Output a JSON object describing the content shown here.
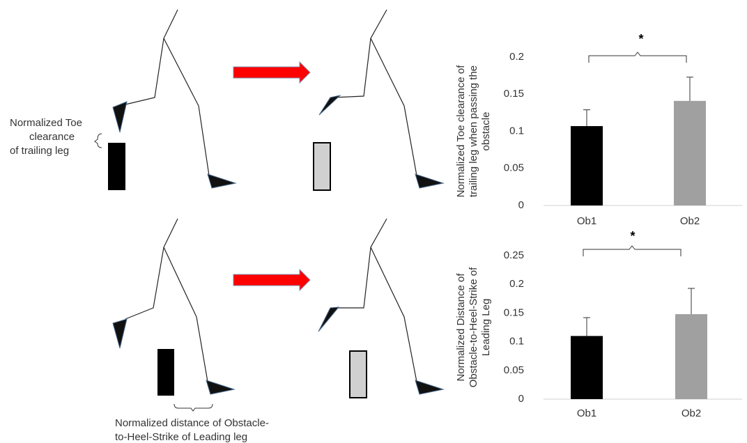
{
  "annotations": {
    "toe_clearance_label": [
      "Normalized Toe",
      "clearance",
      "of trailing leg"
    ],
    "heel_strike_label": [
      "Normalized distance of Obstacle-",
      "to-Heel-Strike of Leading leg"
    ]
  },
  "chart_data": [
    {
      "type": "bar",
      "ylabel": [
        "Normalized Toe clearance of",
        "trailing leg when passing the",
        "obstacle"
      ],
      "categories": [
        "Ob1",
        "Ob2"
      ],
      "values": [
        0.107,
        0.141
      ],
      "errors": [
        0.022,
        0.032
      ],
      "colors": [
        "#000000",
        "#a0a0a0"
      ],
      "significance": "*",
      "ylim": [
        0,
        0.2
      ],
      "yticks": [
        0,
        0.05,
        0.1,
        0.15,
        0.2
      ],
      "grid": false
    },
    {
      "type": "bar",
      "ylabel": [
        "Normalized Distance of",
        "Obstacle-to-Heel-Strike of",
        "Leading Leg"
      ],
      "categories": [
        "Ob1",
        "Ob2"
      ],
      "values": [
        0.11,
        0.148
      ],
      "errors": [
        0.032,
        0.045
      ],
      "colors": [
        "#000000",
        "#a0a0a0"
      ],
      "significance": "*",
      "ylim": [
        0,
        0.25
      ],
      "yticks": [
        0,
        0.05,
        0.1,
        0.15,
        0.2,
        0.25
      ],
      "grid": false
    }
  ]
}
